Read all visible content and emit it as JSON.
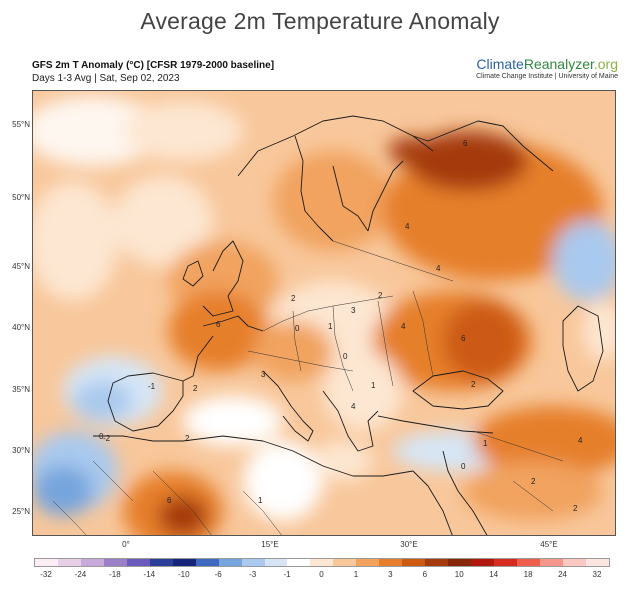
{
  "header": {
    "title": "Average 2m Temperature Anomaly",
    "subtitle": "GFS 2m T Anomaly (°C) [CFSR 1979-2000 baseline]",
    "date_line": "Days 1-3 Avg | Sat, Sep 02, 2023"
  },
  "brand": {
    "climate": "Climate",
    "reanalyzer": "Reanalyzer",
    "org": ".org",
    "institute": "Climate Change Institute | University of Maine"
  },
  "map": {
    "lat_labels": [
      "55°N",
      "50°N",
      "45°N",
      "40°N",
      "35°N",
      "30°N",
      "25°N"
    ],
    "lon_labels": [
      "0°",
      "15°E",
      "30°E",
      "45°E"
    ],
    "contour_labels": [
      "4",
      "6",
      "2",
      "0",
      "-1",
      "-2",
      "6",
      "1",
      "3",
      "4",
      "2",
      "0",
      "4",
      "6",
      "2",
      "1",
      "4",
      "2",
      "1",
      "6",
      "1",
      "2",
      "0",
      "2",
      "4",
      "2",
      "3",
      "0"
    ]
  },
  "legend": {
    "ticks": [
      "-32",
      "-24",
      "-18",
      "-14",
      "-10",
      "-6",
      "-3",
      "-1",
      "0",
      "1",
      "3",
      "6",
      "10",
      "14",
      "18",
      "24",
      "32"
    ],
    "colors": [
      "#fbeef6",
      "#e6cfe7",
      "#c9a9da",
      "#9d7fc8",
      "#6a5aba",
      "#2b3e9a",
      "#15257a",
      "#3e69c0",
      "#76a5dd",
      "#a9c9ee",
      "#d6e6f6",
      "#ffffff",
      "#fde7d2",
      "#f8c79b",
      "#f1a35e",
      "#e67f2c",
      "#cc5a12",
      "#a53a0c",
      "#86260a",
      "#b0170f",
      "#d62b1e",
      "#ee5c4c",
      "#f4968a",
      "#f9c9c1",
      "#fde6e2"
    ]
  }
}
